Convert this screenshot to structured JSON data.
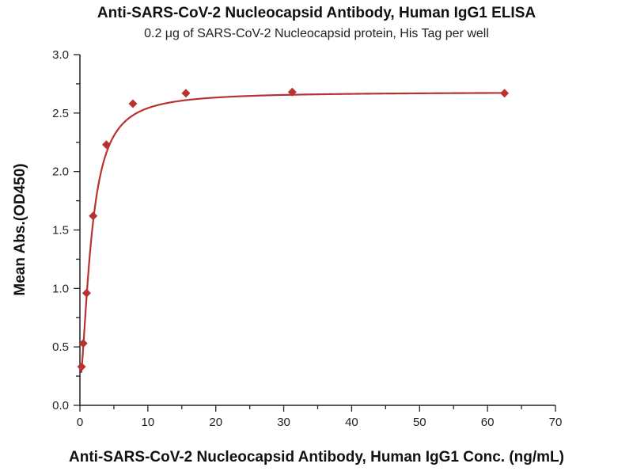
{
  "chart_data": {
    "type": "scatter",
    "title": "Anti-SARS-CoV-2 Nucleocapsid Antibody, Human IgG1 ELISA",
    "subtitle": "0.2 μg of SARS-CoV-2 Nucleocapsid protein, His Tag per well",
    "xlabel": "Anti-SARS-CoV-2 Nucleocapsid Antibody, Human IgG1 Conc. (ng/mL)",
    "ylabel": "Mean Abs.(OD450)",
    "xlim": [
      0,
      70
    ],
    "ylim": [
      0,
      3.0
    ],
    "xticks": [
      "0",
      "10",
      "20",
      "30",
      "40",
      "50",
      "60",
      "70"
    ],
    "yticks": [
      "0.0",
      "0.5",
      "1.0",
      "1.5",
      "2.0",
      "2.5",
      "3.0"
    ],
    "grid": false,
    "color": "#b83232",
    "series": [
      {
        "name": "OD450",
        "x": [
          0.24,
          0.49,
          0.98,
          1.95,
          3.9,
          7.8,
          15.6,
          31.25,
          62.5
        ],
        "y": [
          0.33,
          0.53,
          0.96,
          1.62,
          2.23,
          2.58,
          2.67,
          2.68,
          2.67
        ]
      }
    ],
    "fit": {
      "model": "4PL",
      "bottom": 0.2,
      "top": 2.68,
      "ec50": 1.7,
      "hill": 1.6
    }
  }
}
